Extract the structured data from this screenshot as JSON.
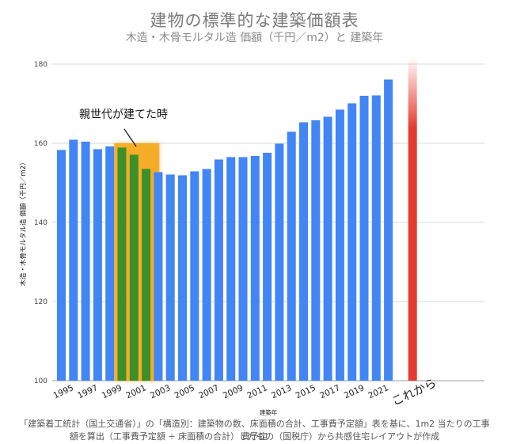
{
  "chart_data": {
    "type": "bar",
    "title": "建物の標準的な建築価額表",
    "subtitle": "木造・木骨モルタル造 価額（千円／m2）と 建築年",
    "xlabel": "建築年",
    "ylabel": "木造・木骨モルタル造 価額（千円／m2）",
    "ylim": [
      100,
      180
    ],
    "yticks": [
      "100",
      "120",
      "140",
      "160",
      "180"
    ],
    "grid": true,
    "categories": [
      1995,
      1996,
      1997,
      1998,
      1999,
      2000,
      2001,
      2002,
      2003,
      2004,
      2005,
      2006,
      2007,
      2008,
      2009,
      2010,
      2011,
      2012,
      2013,
      2014,
      2015,
      2016,
      2017,
      2018,
      2019,
      2020,
      2021,
      2022
    ],
    "xtick_labels": [
      "1995",
      "",
      "1997",
      "",
      "1999",
      "",
      "2001",
      "",
      "2003",
      "",
      "2005",
      "",
      "2007",
      "",
      "2009",
      "",
      "2011",
      "",
      "2013",
      "",
      "2015",
      "",
      "2017",
      "",
      "2019",
      "",
      "2021",
      ""
    ],
    "series": [
      {
        "values": [
          158.3,
          160.9,
          160.4,
          158.5,
          159.2,
          158.9,
          157.1,
          153.5,
          152.7,
          152.1,
          151.9,
          152.9,
          153.5,
          155.9,
          156.5,
          156.5,
          156.8,
          157.6,
          159.9,
          162.9,
          165.3,
          165.8,
          166.7,
          168.5,
          170.1,
          172.0,
          172.1,
          176.1
        ],
        "color": "#4285f4"
      }
    ],
    "highlight": {
      "label": "親世代が建てた時",
      "from": 2000,
      "to": 2002,
      "color": "#f4a81d",
      "bar_color": "#3d8f2a"
    },
    "future": {
      "label": "これから",
      "color": "#e53a2e"
    }
  },
  "source_lines": [
    "「建築着工統計（国土交通省）」の「構造別：建築物の数、床面積の合計、工事費予定額」表を基に、1m2 当たりの工事費予定",
    "額を算出（工事費予定額 ÷ 床面積の合計）したもの（国税庁）から共感住宅レイアウトが作成"
  ]
}
